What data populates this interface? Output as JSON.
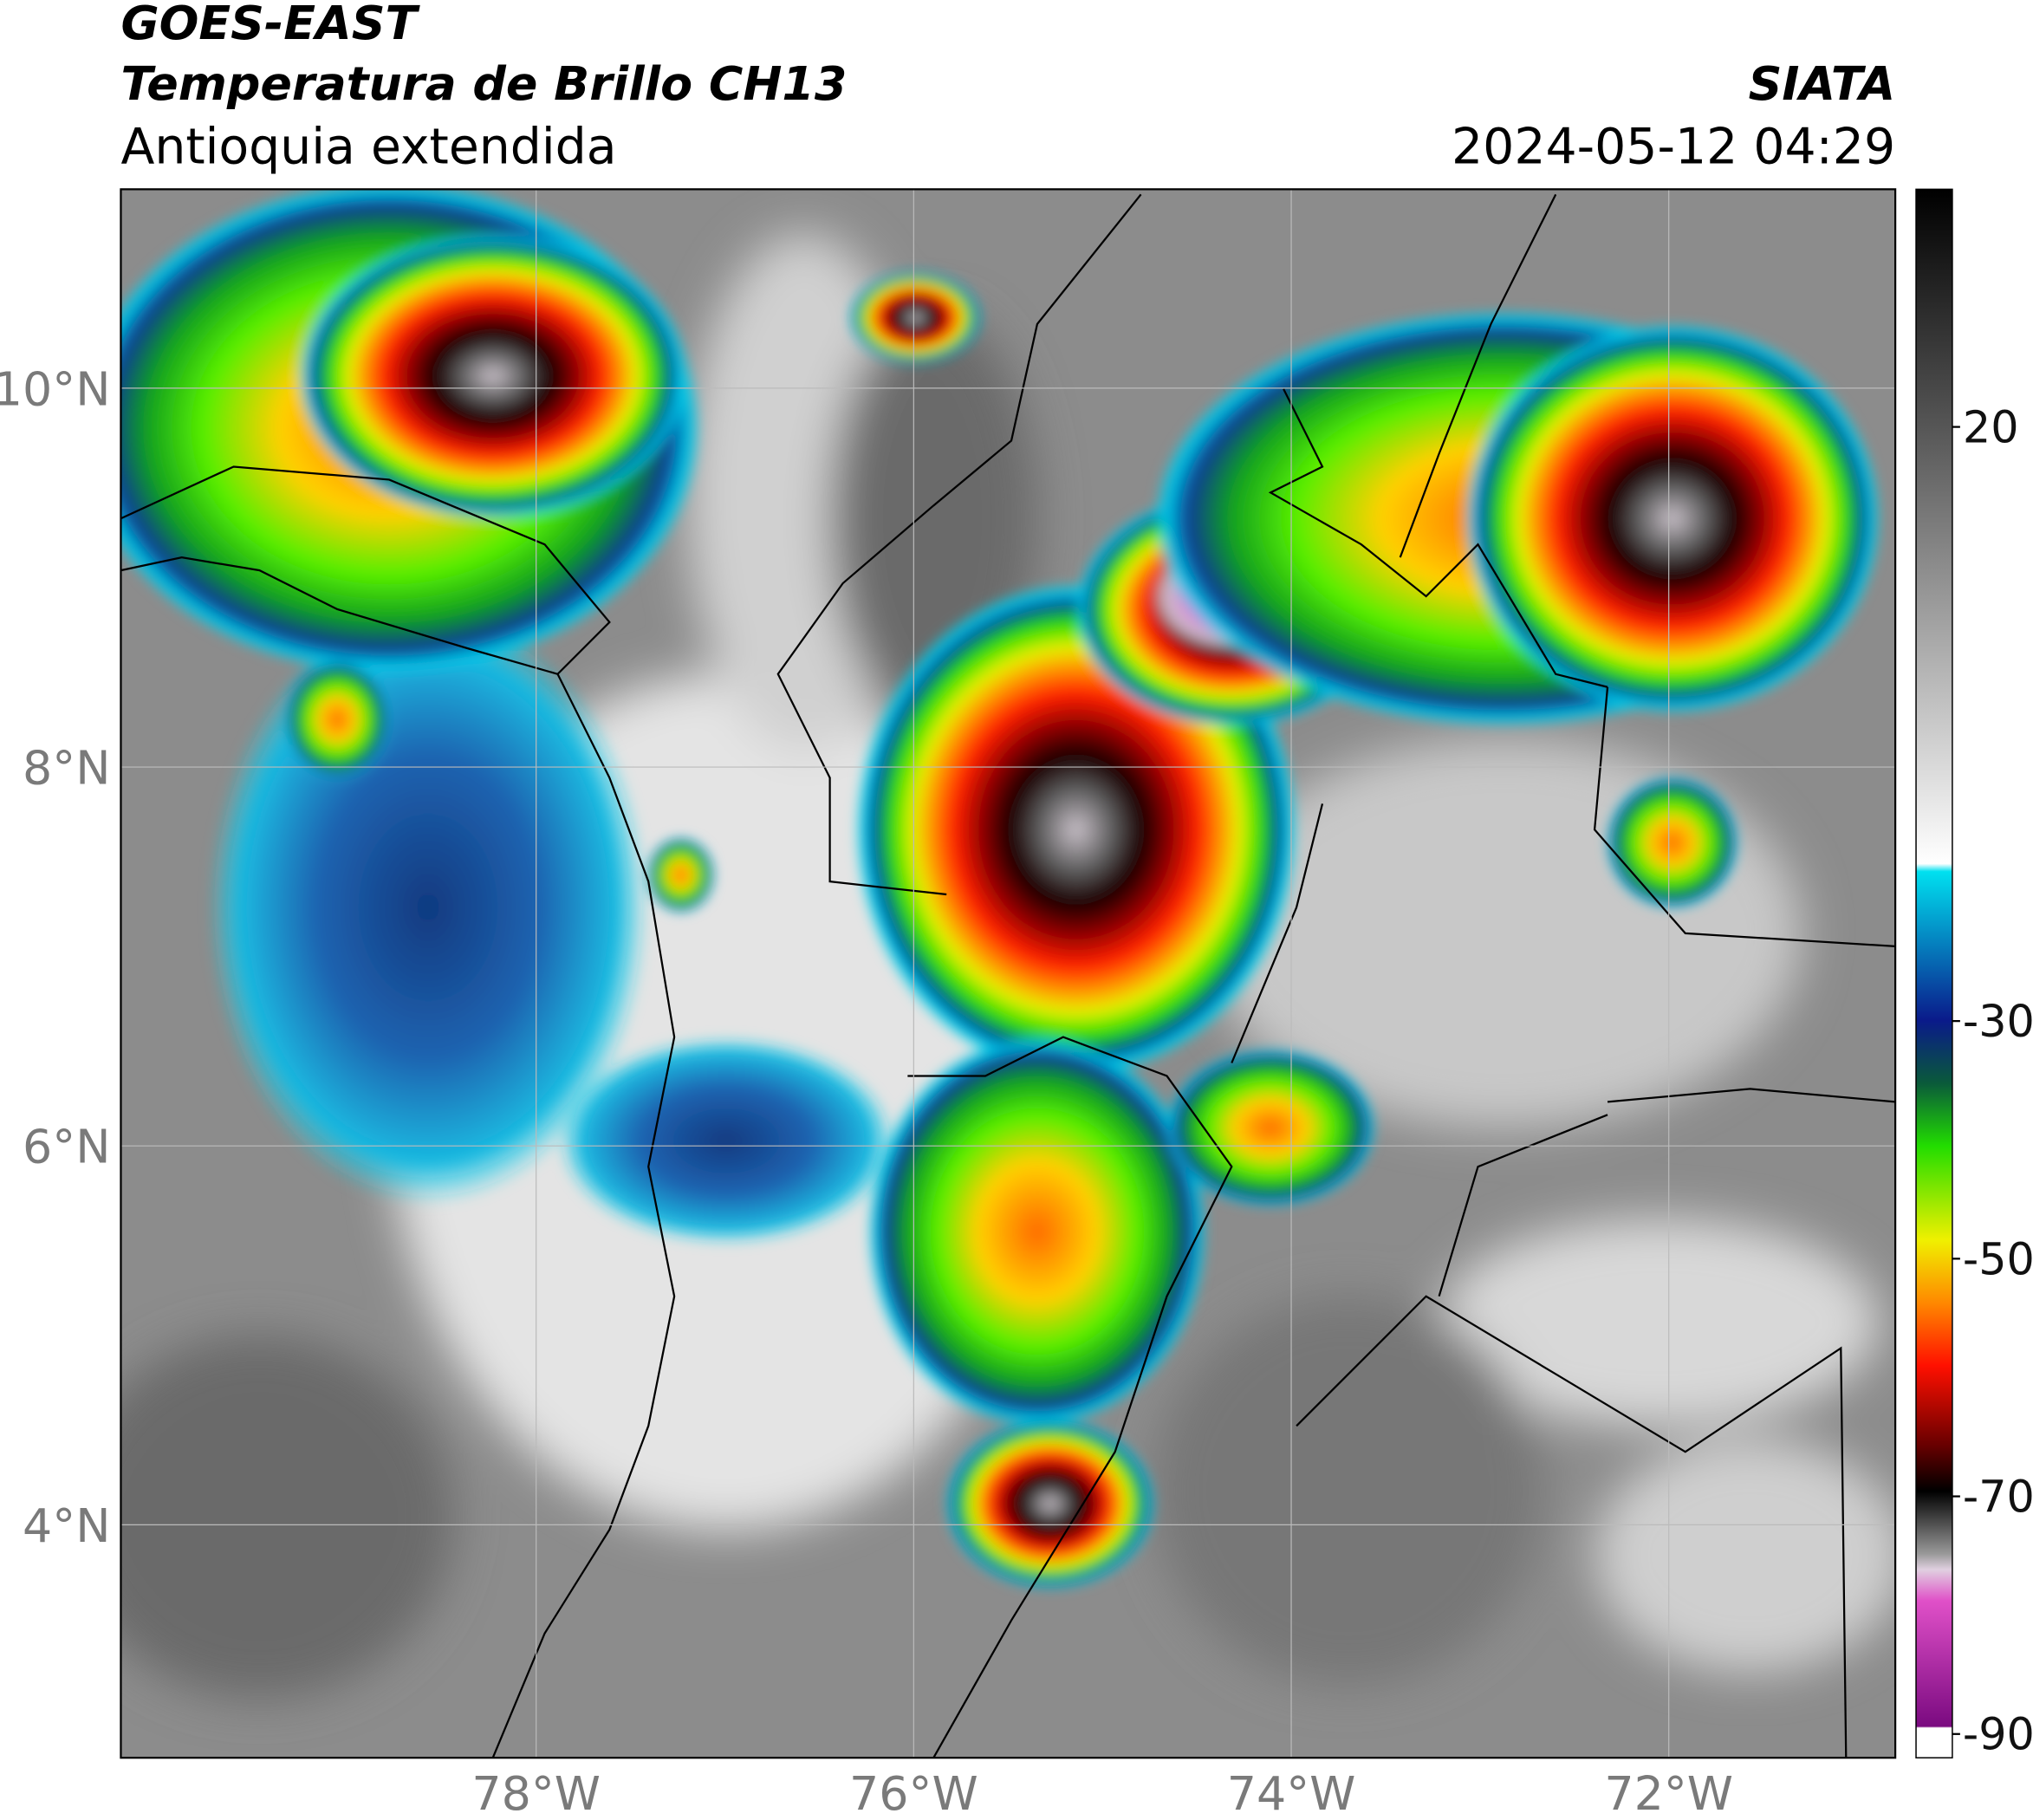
{
  "header": {
    "title": "GOES-EAST",
    "subtitle": "Temperatura de Brillo CH13",
    "region": "Antioquia extendida",
    "source": "SIATA",
    "datetime": "2024-05-12 04:29"
  },
  "map": {
    "xlim": [
      -80.2,
      -70.8
    ],
    "ylim": [
      2.77,
      11.05
    ],
    "xticks": [
      {
        "value": -78,
        "label": "78°W"
      },
      {
        "value": -76,
        "label": "76°W"
      },
      {
        "value": -74,
        "label": "74°W"
      },
      {
        "value": -72,
        "label": "72°W"
      }
    ],
    "yticks": [
      {
        "value": 10,
        "label": "10°N"
      },
      {
        "value": 8,
        "label": "8°N"
      },
      {
        "value": 6,
        "label": "6°N"
      },
      {
        "value": 4,
        "label": "4°N"
      }
    ],
    "grid": true
  },
  "colorbar": {
    "clim": [
      -92,
      40
    ],
    "ticks": [
      20,
      -30,
      -50,
      -70,
      -90
    ]
  }
}
